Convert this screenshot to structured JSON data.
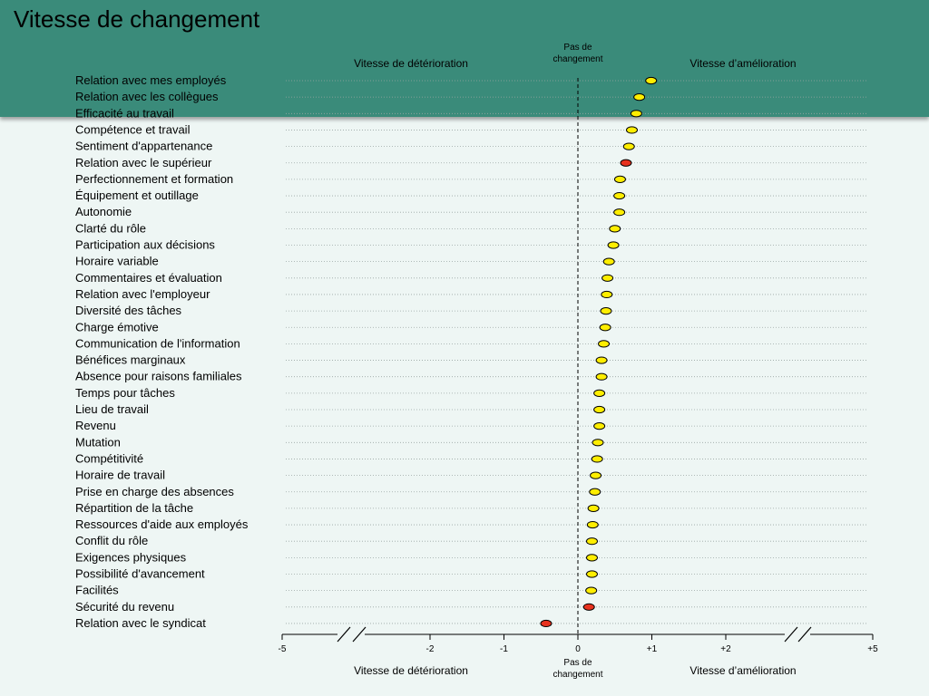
{
  "page": {
    "title": "Vitesse de changement"
  },
  "chart_data": {
    "type": "scatter",
    "orientation": "horizontal-dot",
    "title": "",
    "xlabel": "",
    "ylabel": "",
    "header_labels": {
      "left": "Vitesse de détérioration",
      "center": "Pas de changement",
      "right": "Vitesse d’amélioration"
    },
    "footer_labels": {
      "left": "Vitesse de détérioration",
      "center": "Pas de changement",
      "right": "Vitesse d’amélioration"
    },
    "x_ticks": [
      "-5",
      "-2",
      "-1",
      "0",
      "+1",
      "+2",
      "+5"
    ],
    "xlim": [
      -5,
      5
    ],
    "axis_breaks": [
      [
        -5,
        -2
      ],
      [
        2,
        5
      ]
    ],
    "grid": "dotted horizontal row lines",
    "marker_colors": {
      "default": "#ffee00",
      "highlight": "#e8321e"
    },
    "categories": [
      "Relation avec mes employés",
      "Relation avec les collègues",
      "Efficacité au travail",
      "Compétence et travail",
      "Sentiment d'appartenance",
      "Relation avec le supérieur",
      "Perfectionnement et formation",
      "Équipement et outillage",
      "Autonomie",
      "Clarté du rôle",
      "Participation aux décisions",
      "Horaire variable",
      "Commentaires et évaluation",
      "Relation avec l'employeur",
      "Diversité des tâches",
      "Charge émotive",
      "Communication de l'information",
      "Bénéfices marginaux",
      "Absence pour raisons familiales",
      "Temps pour tâches",
      "Lieu de travail",
      "Revenu",
      "Mutation",
      "Compétitivité",
      "Horaire de travail",
      "Prise en charge des absences",
      "Répartition de la tâche",
      "Ressources d'aide aux employés",
      "Conflit du rôle",
      "Exigences physiques",
      "Possibilité d'avancement",
      "Facilités",
      "Sécurité du revenu",
      "Relation avec le syndicat"
    ],
    "values": [
      0.99,
      0.83,
      0.79,
      0.73,
      0.69,
      0.65,
      0.57,
      0.56,
      0.56,
      0.5,
      0.48,
      0.42,
      0.4,
      0.39,
      0.38,
      0.37,
      0.35,
      0.32,
      0.32,
      0.29,
      0.29,
      0.29,
      0.27,
      0.26,
      0.24,
      0.23,
      0.21,
      0.2,
      0.19,
      0.19,
      0.19,
      0.18,
      0.15,
      -0.43
    ],
    "highlighted": [
      false,
      false,
      false,
      false,
      false,
      true,
      false,
      false,
      false,
      false,
      false,
      false,
      false,
      false,
      false,
      false,
      false,
      false,
      false,
      false,
      false,
      false,
      false,
      false,
      false,
      false,
      false,
      false,
      false,
      false,
      false,
      false,
      true,
      true
    ]
  }
}
